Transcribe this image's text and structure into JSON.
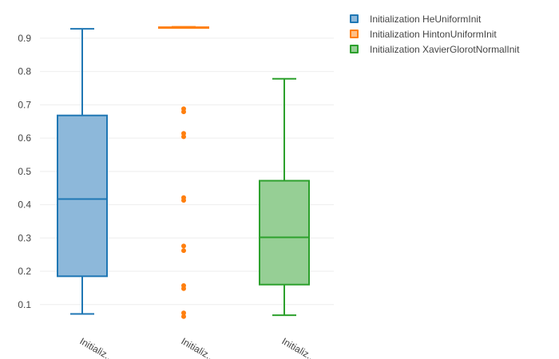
{
  "chart_data": {
    "type": "box",
    "title": "",
    "xlabel": "",
    "ylabel": "",
    "categories": [
      "Initializ...",
      "Initializ...",
      "Initializ..."
    ],
    "ylim": [
      0.03,
      0.95
    ],
    "yticks": [
      0.1,
      0.2,
      0.3,
      0.4,
      0.5,
      0.6,
      0.7,
      0.8,
      0.9
    ],
    "grid": true,
    "legend_position": "top-right",
    "series": [
      {
        "name": "Initialization HeUniformInit",
        "color": "#1f77b4",
        "fill": "#8db8da",
        "min": 0.072,
        "q1": 0.185,
        "median": 0.417,
        "q3": 0.668,
        "max": 0.928,
        "outliers": []
      },
      {
        "name": "Initialization HintonUniformInit",
        "color": "#ff7f0e",
        "fill": "#ffbf86",
        "min": 0.931,
        "q1": 0.932,
        "median": 0.932,
        "q3": 0.933,
        "max": 0.934,
        "outliers": [
          0.688,
          0.679,
          0.614,
          0.604,
          0.421,
          0.413,
          0.276,
          0.262,
          0.157,
          0.148,
          0.075,
          0.064
        ]
      },
      {
        "name": "Initialization XavierGlorotNormalInit",
        "color": "#2ca02c",
        "fill": "#96cf95",
        "min": 0.068,
        "q1": 0.16,
        "median": 0.302,
        "q3": 0.472,
        "max": 0.778,
        "outliers": []
      }
    ]
  }
}
